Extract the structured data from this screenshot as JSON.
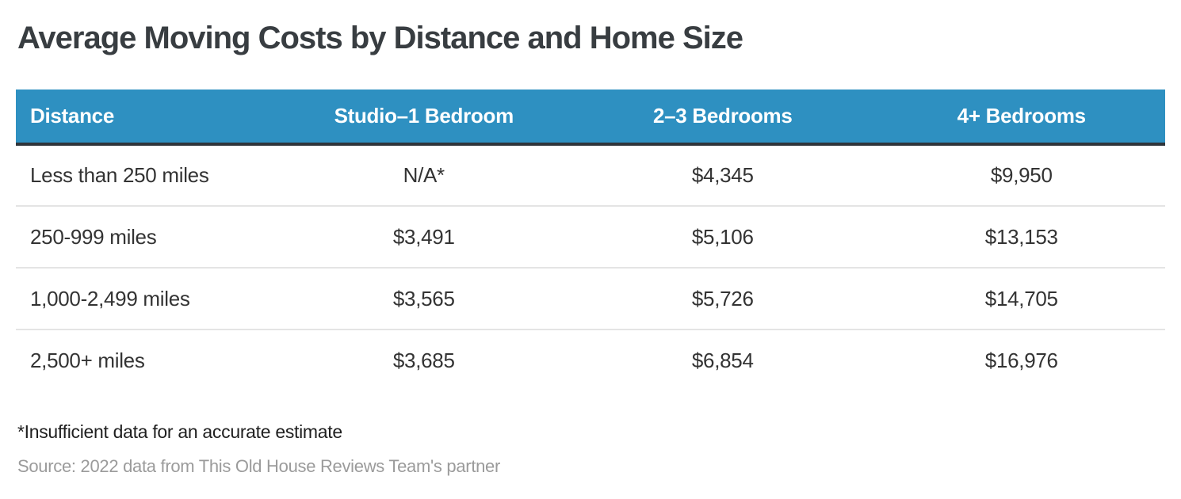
{
  "title": "Average Moving Costs by Distance and Home Size",
  "chart_data": {
    "type": "table",
    "title": "Average Moving Costs by Distance and Home Size",
    "columns": [
      "Distance",
      "Studio–1 Bedroom",
      "2–3 Bedrooms",
      "4+ Bedrooms"
    ],
    "rows": [
      [
        "Less than 250 miles",
        "N/A*",
        "$4,345",
        "$9,950"
      ],
      [
        "250-999 miles",
        "$3,491",
        "$5,106",
        "$13,153"
      ],
      [
        "1,000-2,499 miles",
        "$3,565",
        "$5,726",
        "$14,705"
      ],
      [
        "2,500+ miles",
        "$3,685",
        "$6,854",
        "$16,976"
      ]
    ],
    "numeric_values": {
      "unit": "USD",
      "series": [
        {
          "name": "Studio–1 Bedroom",
          "values": [
            null,
            3491,
            3565,
            3685
          ]
        },
        {
          "name": "2–3 Bedrooms",
          "values": [
            4345,
            5106,
            5726,
            6854
          ]
        },
        {
          "name": "4+ Bedrooms",
          "values": [
            9950,
            13153,
            14705,
            16976
          ]
        }
      ],
      "categories": [
        "Less than 250 miles",
        "250-999 miles",
        "1,000-2,499 miles",
        "2,500+ miles"
      ],
      "na_note": "N/A* = insufficient data"
    },
    "footnote": "*Insufficient data for an accurate estimate",
    "source": "Source: 2022 data from This Old House Reviews Team's partner"
  },
  "colors": {
    "header_bg": "#2e90c1",
    "header_text": "#ffffff",
    "header_bottom_border": "#2f343a",
    "row_divider": "#e4e4e4",
    "title_text": "#383d41",
    "body_text": "#333333",
    "footnote_text": "#1f1f1f",
    "source_text": "#9b9b9b",
    "background": "#ffffff"
  }
}
